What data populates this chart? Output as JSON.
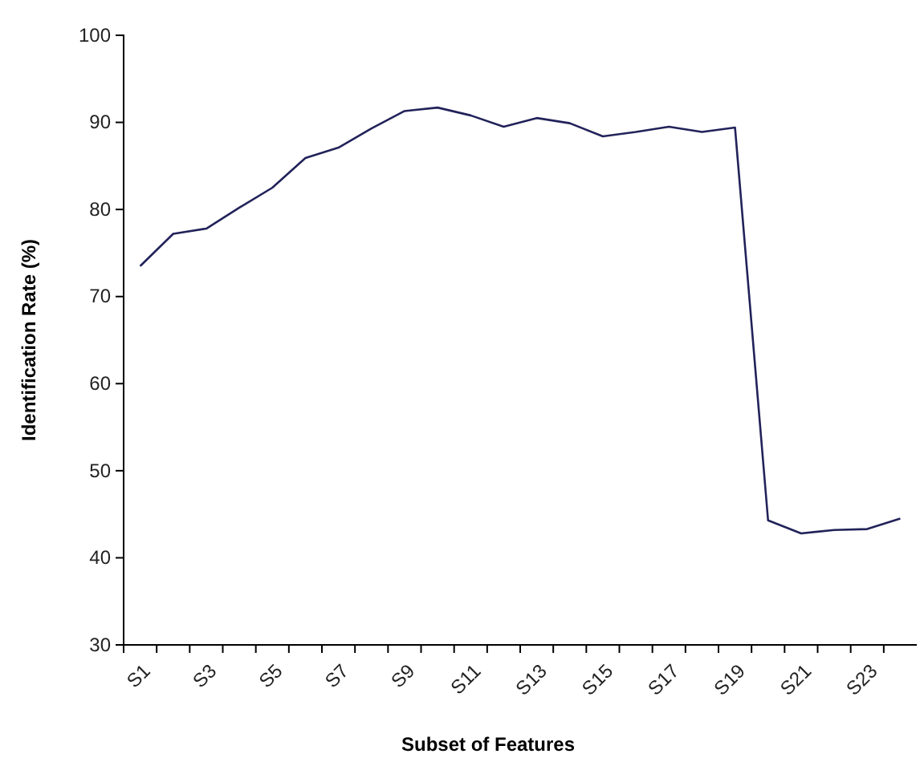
{
  "chart_data": {
    "type": "line",
    "xlabel": "Subset of Features",
    "ylabel": "Identification Rate (%)",
    "categories": [
      "S1",
      null,
      "S3",
      null,
      "S5",
      null,
      "S7",
      null,
      "S9",
      null,
      "S11",
      null,
      "S13",
      null,
      "S15",
      null,
      "S17",
      null,
      "S19",
      null,
      "S21",
      null,
      "S23",
      null
    ],
    "series": [
      {
        "color": "#22225a",
        "values": [
          73.5,
          77.2,
          77.8,
          80.2,
          82.5,
          85.9,
          87.1,
          89.3,
          91.3,
          91.7,
          90.8,
          89.5,
          90.5,
          89.9,
          88.4,
          88.9,
          89.5,
          88.9,
          89.4,
          44.3,
          42.8,
          43.2,
          43.3,
          44.5
        ]
      }
    ],
    "ylim": [
      30,
      100
    ],
    "yticks": [
      30,
      40,
      50,
      60,
      70,
      80,
      90,
      100
    ],
    "grid": false,
    "marker": "none",
    "line_style": "solid"
  }
}
